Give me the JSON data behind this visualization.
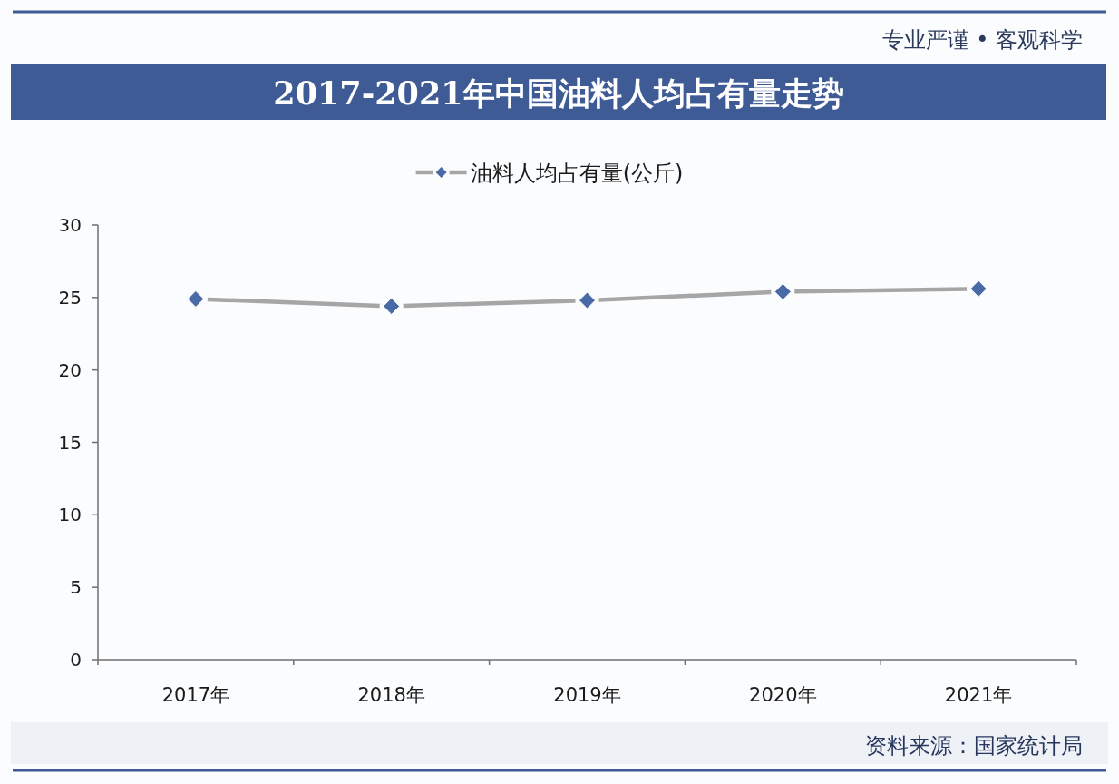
{
  "chart_data": {
    "type": "line",
    "title": "2017-2021年中国油料人均占有量走势",
    "categories": [
      "2017年",
      "2018年",
      "2019年",
      "2020年",
      "2021年"
    ],
    "series": [
      {
        "name": "油料人均占有量(公斤)",
        "color": "#a6a6a6",
        "colors": [
          "#4a6aa6",
          "#4a6aa6",
          "#4a6aa6",
          "#4a6aa6",
          "#4a6aa6"
        ],
        "values": [
          24.9,
          24.4,
          24.8,
          25.4,
          25.6
        ]
      }
    ],
    "ylim": [
      0,
      30
    ],
    "yticks": [
      0,
      5,
      10,
      15,
      20,
      25,
      30
    ],
    "grid": false,
    "legend": "top",
    "marker": "diamond",
    "line_style": "solid",
    "annotations": [
      "专业严谨 • 客观科学",
      "资料来源：国家统计局"
    ]
  }
}
